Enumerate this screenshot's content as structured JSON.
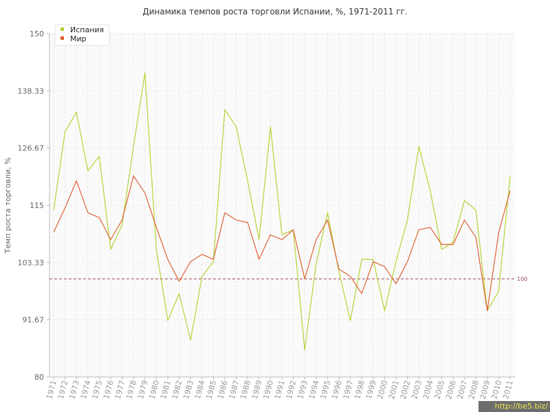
{
  "chart_data": {
    "type": "line",
    "title": "Динамика темпов роста торговли Испании, %, 1971-2011 гг.",
    "xlabel": "",
    "ylabel": "Темп роста торговли, %",
    "ylim": [
      80,
      150
    ],
    "yticks": [
      "80",
      "91.67",
      "103.33",
      "115",
      "126.67",
      "138.33",
      "150"
    ],
    "reference_line": {
      "value": 100,
      "label": "100",
      "color": "#a04050"
    },
    "grid": true,
    "legend": "top-left",
    "categories": [
      "1971",
      "1972",
      "1973",
      "1974",
      "1975",
      "1976",
      "1977",
      "1978",
      "1979",
      "1980",
      "1981",
      "1982",
      "1983",
      "1984",
      "1985",
      "1986",
      "1987",
      "1988",
      "1989",
      "1990",
      "1991",
      "1992",
      "1993",
      "1994",
      "1995",
      "1996",
      "1997",
      "1998",
      "1999",
      "2000",
      "2001",
      "2002",
      "2003",
      "2004",
      "2005",
      "2006",
      "2007",
      "2008",
      "2009",
      "2010",
      "2011"
    ],
    "series": [
      {
        "name": "Испания",
        "color": "#b5d334",
        "values": [
          114,
          130,
          134,
          122,
          125,
          106,
          111,
          127,
          142,
          106,
          91.5,
          97,
          87.5,
          100.5,
          103.5,
          134.5,
          131,
          120,
          108,
          131,
          109,
          110,
          85.5,
          103,
          113.5,
          101.5,
          91.5,
          104,
          104,
          93.5,
          103.5,
          112,
          127,
          118,
          106,
          107.5,
          116,
          114,
          93.5,
          97.5,
          121
        ]
      },
      {
        "name": "Мир",
        "color": "#e06030",
        "values": [
          109.5,
          114.5,
          120,
          113.5,
          112.5,
          108,
          112,
          121,
          117.5,
          110.5,
          104,
          99.5,
          103.5,
          105,
          104,
          113.5,
          112,
          111.5,
          104,
          109,
          108,
          110,
          100,
          108,
          112,
          102,
          100.5,
          97,
          103.5,
          102.5,
          99,
          103.5,
          110,
          110.5,
          107,
          107,
          112,
          108.5,
          93.5,
          109.5,
          118
        ]
      }
    ]
  },
  "watermark": "http://be5.biz/"
}
